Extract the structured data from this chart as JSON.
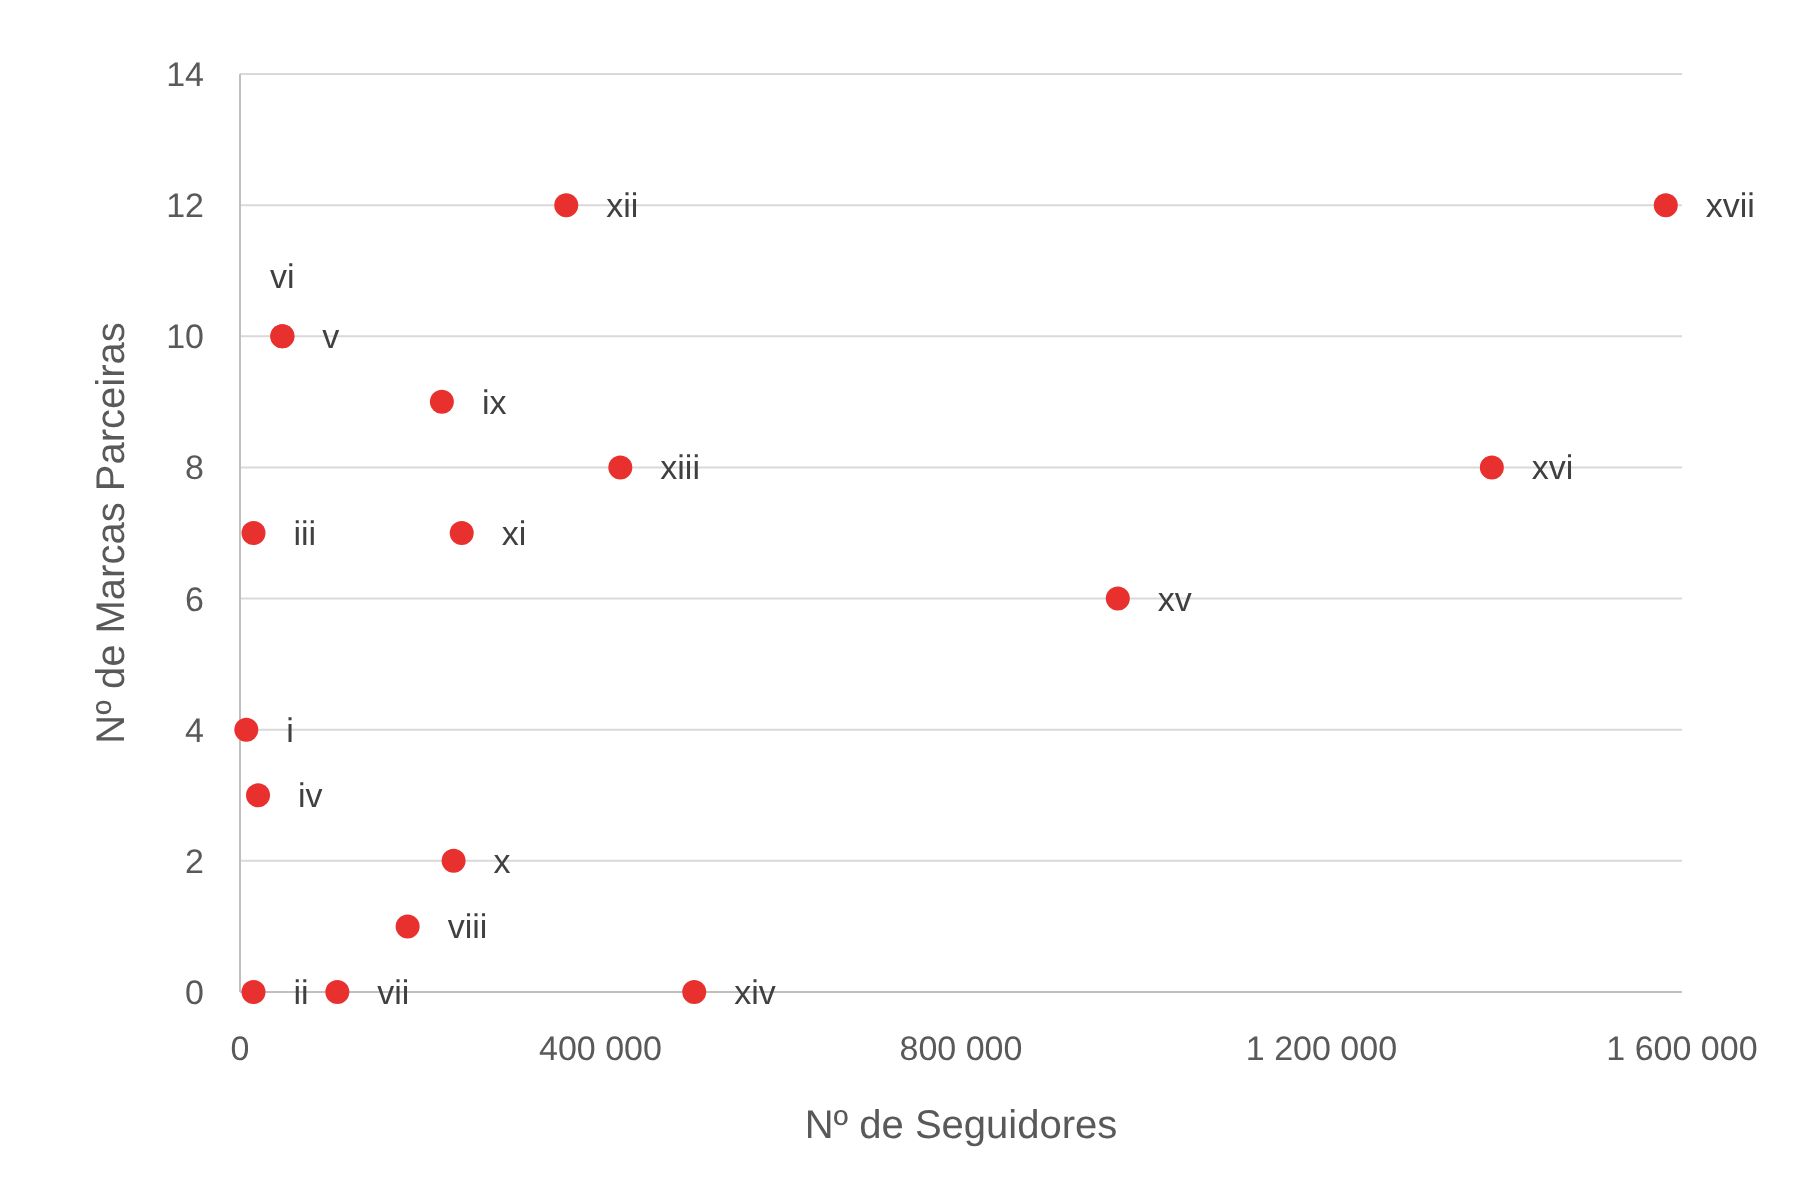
{
  "chart_data": {
    "type": "scatter",
    "xlabel": "Nº de Seguidores",
    "ylabel": "Nº de Marcas Parceiras",
    "x": [
      7000,
      15000,
      15000,
      20000,
      47000,
      47000,
      108000,
      186000,
      224000,
      237000,
      246000,
      362000,
      422000,
      504000,
      974000,
      1389000,
      1582000
    ],
    "series": [
      {
        "color": "#e8312f",
        "values": [
          4,
          0,
          7,
          3,
          10,
          10,
          0,
          1,
          9,
          2,
          7,
          12,
          8,
          0,
          6,
          8,
          12
        ],
        "value_labels": [
          "i",
          "ii",
          "iii",
          "iv",
          "v",
          "vi",
          "vii",
          "viii",
          "ix",
          "x",
          "xi",
          "xii",
          "xiii",
          "xiv",
          "xv",
          "xvi",
          "xvii"
        ]
      }
    ],
    "xlim": [
      0,
      1600000
    ],
    "xticks": [
      {
        "value": 0,
        "label": "0"
      },
      {
        "value": 400000,
        "label": "400 000"
      },
      {
        "value": 800000,
        "label": "800 000"
      },
      {
        "value": 1200000,
        "label": "1 200 000"
      },
      {
        "value": 1600000,
        "label": "1 600 000"
      }
    ],
    "ylim": [
      0,
      14
    ],
    "yticks": [
      0,
      2,
      4,
      6,
      8,
      10,
      12,
      14
    ],
    "grid": "y",
    "marker": "circle"
  }
}
